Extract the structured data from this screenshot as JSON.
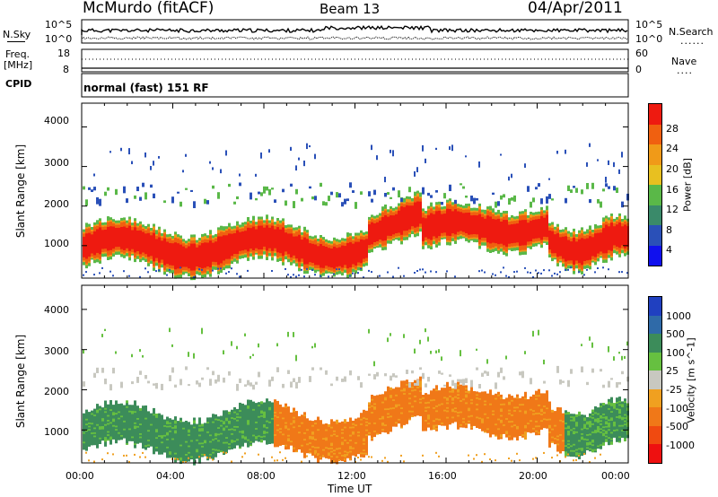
{
  "header": {
    "station": "McMurdo (fitACF)",
    "beam": "Beam 13",
    "date": "04/Apr/2011"
  },
  "top_panel": {
    "left_label": "N.Sky",
    "right_label": "N.Search",
    "right_label_legend": "......",
    "left_ticks": [
      "10^5",
      "10^0"
    ],
    "right_ticks": [
      "10^5",
      "10^0"
    ]
  },
  "freq_panel": {
    "left_label_1": "Freq.",
    "left_label_2": "[MHz]",
    "right_label": "Nave",
    "right_label_legend": "....",
    "left_ticks": [
      "18",
      "8"
    ],
    "right_ticks": [
      "60",
      "0"
    ]
  },
  "cpid": {
    "label": "CPID",
    "value": "normal (fast) 151 RF"
  },
  "chart_data": [
    {
      "type": "heatmap",
      "name": "power",
      "ylabel": "Slant Range [km]",
      "ylim": [
        180,
        4600
      ],
      "yticks": [
        "1000",
        "2000",
        "3000",
        "4000"
      ],
      "xlim": [
        0,
        24
      ],
      "colorbar_label": "Power [dB]",
      "colorbar_ticks": [
        "4",
        "8",
        "12",
        "16",
        "20",
        "24",
        "28"
      ],
      "colorbar_colors": [
        "#1010ee",
        "#2a50b8",
        "#3a8a6a",
        "#5ab848",
        "#e8c020",
        "#f09a18",
        "#f06010",
        "#ee1a10"
      ]
    },
    {
      "type": "heatmap",
      "name": "velocity",
      "ylabel": "Slant Range [km]",
      "ylim": [
        180,
        4600
      ],
      "yticks": [
        "1000",
        "2000",
        "3000",
        "4000"
      ],
      "xlim": [
        0,
        24
      ],
      "xticks": [
        "00:00",
        "04:00",
        "08:00",
        "12:00",
        "16:00",
        "20:00",
        "00:00"
      ],
      "xlabel": "Time UT",
      "colorbar_label": "Velocity [m s^-1]",
      "colorbar_ticks": [
        "1000",
        "500",
        "100",
        "25",
        "-25",
        "-100",
        "-500",
        "-1000"
      ],
      "colorbar_colors": [
        "#2040c0",
        "#2f6aa8",
        "#3c8c5a",
        "#66c040",
        "#c8c8c0",
        "#f0a020",
        "#f07818",
        "#f04a10",
        "#ee1010"
      ]
    }
  ]
}
